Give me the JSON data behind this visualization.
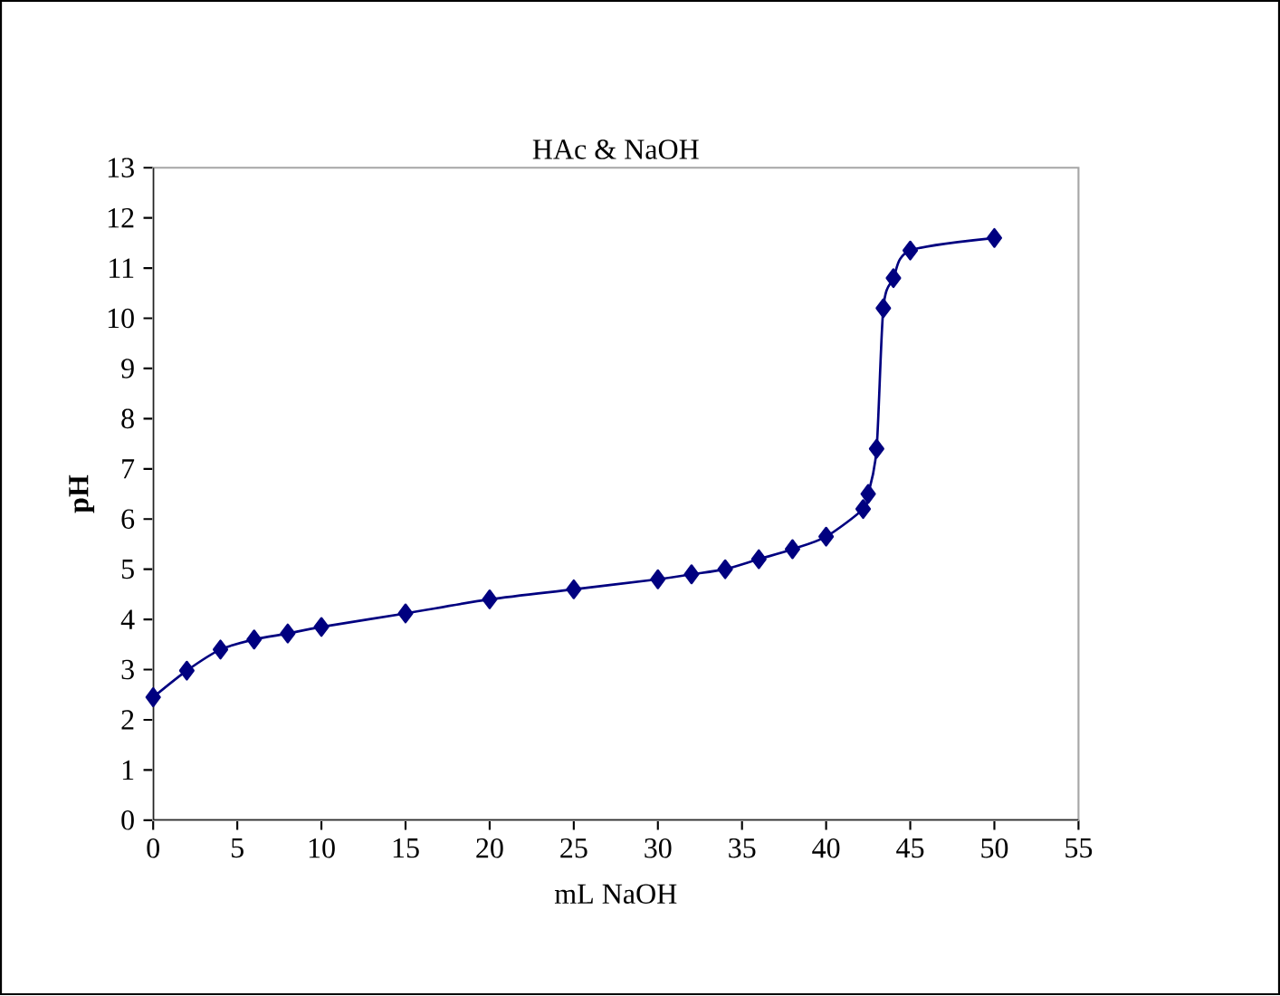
{
  "chart_data": {
    "type": "line",
    "title": "HAc & NaOH",
    "xlabel": "mL NaOH",
    "ylabel": "pH",
    "xlim": [
      0,
      55
    ],
    "xticks": [
      0,
      5,
      10,
      15,
      20,
      25,
      30,
      35,
      40,
      45,
      50,
      55
    ],
    "ylim": [
      0,
      13
    ],
    "yticks": [
      0,
      1,
      2,
      3,
      4,
      5,
      6,
      7,
      8,
      9,
      10,
      11,
      12,
      13
    ],
    "marker": "diamond",
    "line_style": "solid",
    "series": [
      {
        "color": "#000080",
        "x": [
          0,
          2,
          4,
          6,
          8,
          10,
          15,
          20,
          25,
          30,
          32,
          34,
          36,
          38,
          40,
          42.2,
          42.5,
          43,
          43.4,
          44,
          45,
          50
        ],
        "values": [
          2.45,
          2.98,
          3.4,
          3.6,
          3.72,
          3.85,
          4.12,
          4.4,
          4.6,
          4.8,
          4.9,
          5.0,
          5.2,
          5.4,
          5.65,
          6.2,
          6.5,
          7.4,
          10.2,
          10.8,
          11.35,
          11.6
        ]
      }
    ]
  }
}
